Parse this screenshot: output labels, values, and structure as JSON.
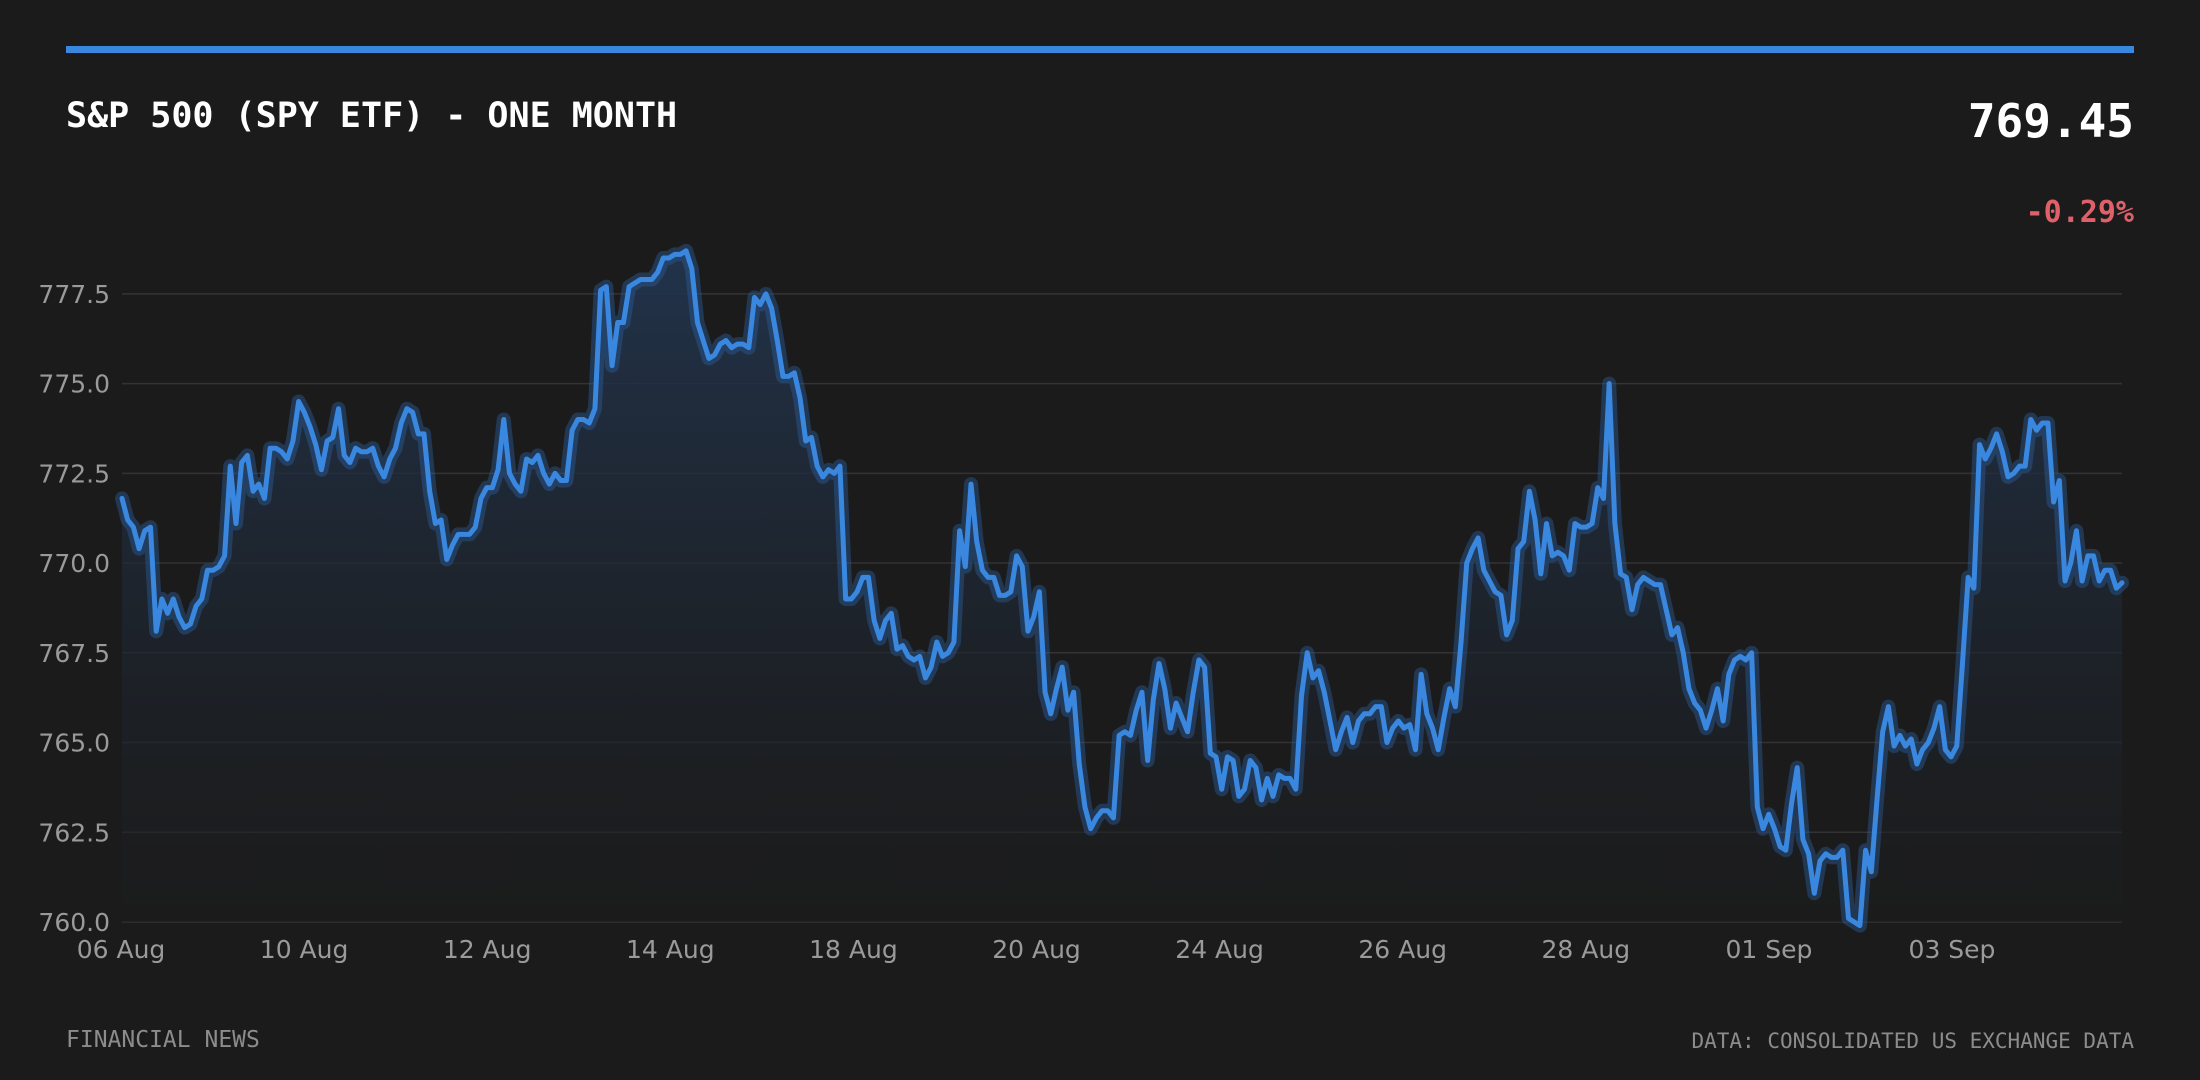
{
  "header": {
    "title": "S&P 500 (SPY ETF) - ONE MONTH",
    "price": "769.45",
    "change": "-0.29%"
  },
  "footer": {
    "source_left": "FINANCIAL NEWS",
    "source_right": "DATA: CONSOLIDATED US EXCHANGE DATA"
  },
  "colors": {
    "background": "#1b1b1b",
    "accent": "#3a87e0",
    "negative": "#e0606a",
    "grid": "#333333",
    "tick_text": "#9a9a9a"
  },
  "chart_data": {
    "type": "line",
    "title": "S&P 500 (SPY ETF) - ONE MONTH",
    "xlabel": "",
    "ylabel": "",
    "ylim": [
      760.0,
      779.0
    ],
    "y_ticks": [
      "760.0",
      "762.5",
      "765.0",
      "767.5",
      "770.0",
      "772.5",
      "775.0",
      "777.5"
    ],
    "x_tick_labels": [
      "06 Aug",
      "10 Aug",
      "12 Aug",
      "14 Aug",
      "18 Aug",
      "20 Aug",
      "24 Aug",
      "26 Aug",
      "28 Aug",
      "01 Sep",
      "03 Sep"
    ],
    "grid": true,
    "area_fill": true,
    "series": [
      {
        "values": [
          771.8,
          771.2,
          771.0,
          770.4,
          770.9,
          771.0,
          768.1,
          769.0,
          768.6,
          769.0,
          768.5,
          768.2,
          768.3,
          768.8,
          769.0,
          769.8,
          769.8,
          769.9,
          770.2,
          772.7,
          771.1,
          772.8,
          773.0,
          772.0,
          772.2,
          771.8,
          773.2,
          773.2,
          773.1,
          772.9,
          773.4,
          774.5,
          774.2,
          773.8,
          773.3,
          772.6,
          773.4,
          773.5,
          774.3,
          773.0,
          772.8,
          773.2,
          773.1,
          773.1,
          773.2,
          772.7,
          772.4,
          772.9,
          773.2,
          773.9,
          774.3,
          774.2,
          773.6,
          773.6,
          772.0,
          771.1,
          771.2,
          770.1,
          770.5,
          770.8,
          770.8,
          770.8,
          771.0,
          771.8,
          772.1,
          772.1,
          772.6,
          774.0,
          772.5,
          772.2,
          772.0,
          772.9,
          772.8,
          773.0,
          772.5,
          772.2,
          772.5,
          772.3,
          772.3,
          773.7,
          774.0,
          774.0,
          773.9,
          774.3,
          777.6,
          777.7,
          775.5,
          776.7,
          776.7,
          777.7,
          777.8,
          777.9,
          777.9,
          777.9,
          778.1,
          778.5,
          778.5,
          778.6,
          778.6,
          778.7,
          778.2,
          776.7,
          776.2,
          775.7,
          775.8,
          776.1,
          776.2,
          776.0,
          776.1,
          776.1,
          776.0,
          777.4,
          777.2,
          777.5,
          777.1,
          776.2,
          775.2,
          775.2,
          775.3,
          774.6,
          773.4,
          773.5,
          772.7,
          772.4,
          772.6,
          772.5,
          772.7,
          769.0,
          769.0,
          769.2,
          769.6,
          769.6,
          768.4,
          767.9,
          768.4,
          768.6,
          767.6,
          767.7,
          767.4,
          767.3,
          767.4,
          766.8,
          767.1,
          767.8,
          767.4,
          767.5,
          767.8,
          770.9,
          769.9,
          772.2,
          770.6,
          769.8,
          769.6,
          769.6,
          769.1,
          769.1,
          769.2,
          770.2,
          769.9,
          768.1,
          768.5,
          769.2,
          766.4,
          765.8,
          766.5,
          767.1,
          765.9,
          766.4,
          764.4,
          763.2,
          762.6,
          762.9,
          763.1,
          763.1,
          762.9,
          765.2,
          765.3,
          765.2,
          765.9,
          766.4,
          764.5,
          766.2,
          767.2,
          766.5,
          765.4,
          766.1,
          765.7,
          765.3,
          766.4,
          767.3,
          767.1,
          764.7,
          764.6,
          763.7,
          764.6,
          764.5,
          763.5,
          763.7,
          764.5,
          764.3,
          763.4,
          764.0,
          763.5,
          764.1,
          764.0,
          764.0,
          763.7,
          766.3,
          767.5,
          766.8,
          767.0,
          766.4,
          765.6,
          764.8,
          765.3,
          765.7,
          765.0,
          765.6,
          765.8,
          765.8,
          766.0,
          766.0,
          765.0,
          765.4,
          765.6,
          765.4,
          765.5,
          764.8,
          766.9,
          765.8,
          765.4,
          764.8,
          765.7,
          766.5,
          766.0,
          767.8,
          770.0,
          770.4,
          770.7,
          769.8,
          769.5,
          769.2,
          769.1,
          768.0,
          768.4,
          770.4,
          770.6,
          772.0,
          771.2,
          769.7,
          771.1,
          770.2,
          770.3,
          770.2,
          769.8,
          771.1,
          771.0,
          771.0,
          771.1,
          772.1,
          771.8,
          775.0,
          771.1,
          769.7,
          769.6,
          768.7,
          769.4,
          769.6,
          769.5,
          769.4,
          769.4,
          768.7,
          768.0,
          768.2,
          767.5,
          766.5,
          766.1,
          765.9,
          765.4,
          765.9,
          766.5,
          765.6,
          766.9,
          767.3,
          767.4,
          767.3,
          767.5,
          763.2,
          762.6,
          763.0,
          762.6,
          762.1,
          762.0,
          763.3,
          764.3,
          762.3,
          761.9,
          760.8,
          761.7,
          761.9,
          761.8,
          761.8,
          762.0,
          760.1,
          760.0,
          759.9,
          762.0,
          761.4,
          763.4,
          765.3,
          766.0,
          764.9,
          765.2,
          764.9,
          765.1,
          764.4,
          764.8,
          765.0,
          765.4,
          766.0,
          764.8,
          764.6,
          764.9,
          767.2,
          769.6,
          769.3,
          773.3,
          772.9,
          773.2,
          773.6,
          773.1,
          772.4,
          772.5,
          772.7,
          772.7,
          774.0,
          773.7,
          773.9,
          773.9,
          771.7,
          772.3,
          769.5,
          770.0,
          770.9,
          769.5,
          770.2,
          770.2,
          769.5,
          769.8,
          769.8,
          769.3,
          769.45
        ]
      }
    ]
  }
}
